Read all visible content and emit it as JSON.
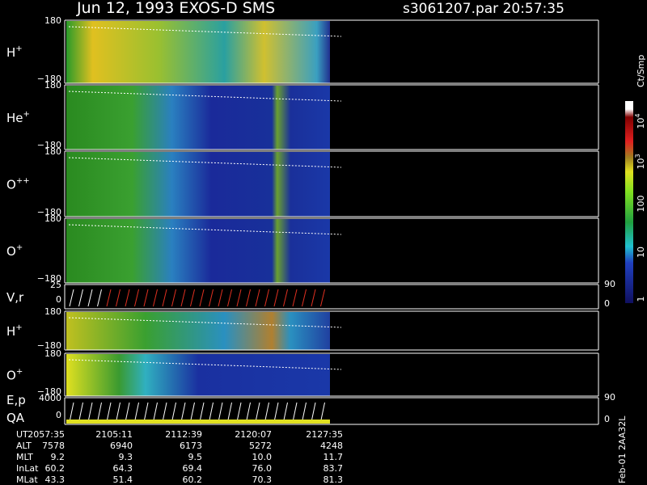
{
  "header": {
    "title": "Jun 12, 1993   EXOS-D SMS",
    "file": "s3061207.par  20:57:35"
  },
  "panels": [
    {
      "label": "H",
      "sup": "+",
      "ticks": [
        "180",
        "−180"
      ]
    },
    {
      "label": "He",
      "sup": "+",
      "ticks": [
        "180",
        "−180"
      ]
    },
    {
      "label": "O",
      "sup": "++",
      "ticks": [
        "180",
        "−180"
      ]
    },
    {
      "label": "O",
      "sup": "+",
      "ticks": [
        "180",
        "−180"
      ]
    },
    {
      "label": "V,r",
      "ticks": [
        "25",
        "0"
      ],
      "right_ticks": [
        "90",
        "0"
      ]
    },
    {
      "label": "H",
      "sup": "+",
      "ticks": [
        "180",
        "−180"
      ]
    },
    {
      "label": "O",
      "sup": "+",
      "ticks": [
        "180",
        "−180"
      ]
    },
    {
      "label": "E,p",
      "label2": "QA",
      "ticks": [
        "4000",
        "0"
      ],
      "right_ticks": [
        "90",
        "0"
      ]
    }
  ],
  "colorbar": {
    "title": "Ct/Smp",
    "labels": [
      {
        "base": "10",
        "sup": "4"
      },
      {
        "base": "10",
        "sup": "3"
      },
      {
        "base": "100"
      },
      {
        "base": "10"
      },
      {
        "base": "1"
      }
    ]
  },
  "footer": {
    "rows": [
      {
        "name": "UT",
        "values": [
          "2057:35",
          "2105:11",
          "2112:39",
          "2120:07",
          "2127:35"
        ]
      },
      {
        "name": "ALT",
        "values": [
          "7578",
          "6940",
          "6173",
          "5272",
          "4248"
        ]
      },
      {
        "name": "MLT",
        "values": [
          "9.2",
          "9.3",
          "9.5",
          "10.0",
          "11.7"
        ]
      },
      {
        "name": "InLat",
        "values": [
          "60.2",
          "64.3",
          "69.4",
          "76.0",
          "83.7"
        ]
      },
      {
        "name": "MLat",
        "values": [
          "43.3",
          "51.4",
          "60.2",
          "70.3",
          "81.3"
        ]
      }
    ]
  },
  "stamp": "Feb-01 2AA32L"
}
